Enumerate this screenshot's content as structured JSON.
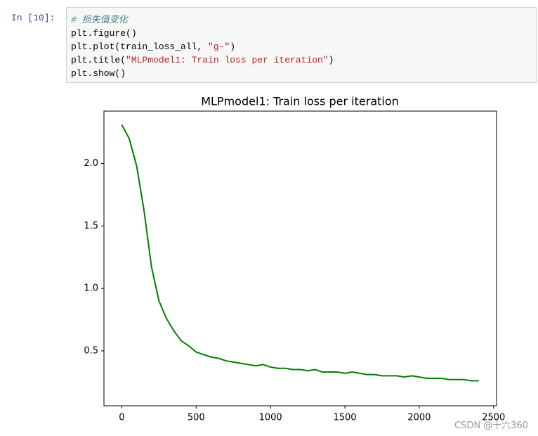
{
  "cell": {
    "prompt": "In [10]:",
    "lines": [
      [
        {
          "text": "# 损失值变化",
          "color": "#408080"
        }
      ],
      [
        {
          "text": "plt.figure()",
          "color": "#000000"
        }
      ],
      [
        {
          "text": "plt.plot(train_loss_all, ",
          "color": "#000000"
        },
        {
          "text": "\"g-\"",
          "color": "#ba2121"
        },
        {
          "text": ")",
          "color": "#000000"
        }
      ],
      [
        {
          "text": "plt.title(",
          "color": "#000000"
        },
        {
          "text": "\"MLPmodel1: Train loss per iteration\"",
          "color": "#ba2121"
        },
        {
          "text": ")",
          "color": "#000000"
        }
      ],
      [
        {
          "text": "plt.show()",
          "color": "#000000"
        }
      ]
    ]
  },
  "chart_data": {
    "type": "line",
    "title": "MLPmodel1: Train loss per iteration",
    "x": [
      0,
      50,
      100,
      150,
      200,
      250,
      300,
      350,
      400,
      450,
      500,
      550,
      600,
      650,
      700,
      750,
      800,
      850,
      900,
      950,
      1000,
      1050,
      1100,
      1150,
      1200,
      1250,
      1300,
      1350,
      1400,
      1450,
      1500,
      1550,
      1600,
      1650,
      1700,
      1750,
      1800,
      1850,
      1900,
      1950,
      2000,
      2050,
      2100,
      2150,
      2200,
      2250,
      2300,
      2350,
      2400
    ],
    "series": [
      {
        "color": "#008000",
        "values": [
          2.31,
          2.2,
          1.98,
          1.62,
          1.17,
          0.9,
          0.76,
          0.66,
          0.58,
          0.54,
          0.49,
          0.47,
          0.45,
          0.44,
          0.42,
          0.41,
          0.4,
          0.39,
          0.38,
          0.39,
          0.37,
          0.36,
          0.36,
          0.35,
          0.35,
          0.34,
          0.35,
          0.33,
          0.33,
          0.33,
          0.32,
          0.33,
          0.32,
          0.31,
          0.31,
          0.3,
          0.3,
          0.3,
          0.29,
          0.3,
          0.29,
          0.28,
          0.28,
          0.28,
          0.27,
          0.27,
          0.27,
          0.26,
          0.26
        ]
      }
    ],
    "xlim": [
      -120,
      2520
    ],
    "ylim": [
      0.06,
      2.42
    ],
    "xticks": [
      0,
      500,
      1000,
      1500,
      2000,
      2500
    ],
    "yticks": [
      0.5,
      {
        "value": 1.0,
        "label": "1.0"
      },
      1.5,
      {
        "value": 2.0,
        "label": "2.0"
      }
    ]
  },
  "watermark": "CSDN @十六360"
}
